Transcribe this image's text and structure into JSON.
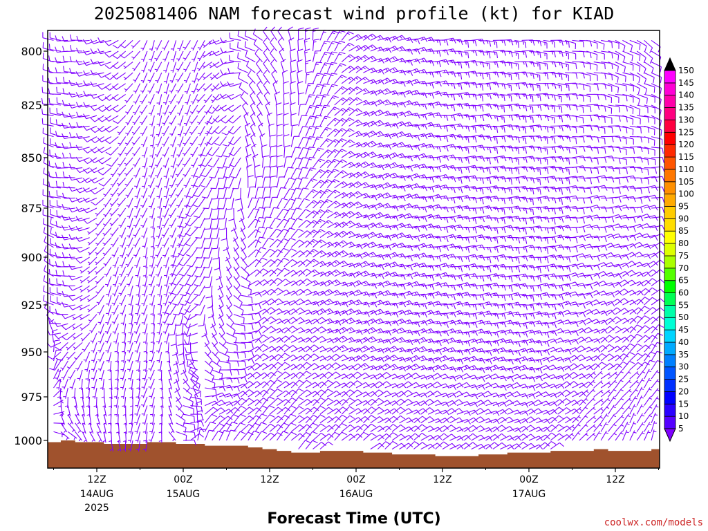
{
  "chart_data": {
    "type": "wind_barb_time_height",
    "title": "2025081406 NAM forecast wind profile (kt) for KIAD",
    "xlabel": "Forecast Time (UTC)",
    "credit": "coolwx.com/models",
    "y_axis": {
      "scale": "pressure",
      "direction": "decreasing-upward",
      "range_hPa": [
        1012,
        790
      ],
      "ticks": [
        "800",
        "825",
        "850",
        "875",
        "900",
        "925",
        "950",
        "975",
        "1000"
      ],
      "tick_values": [
        800,
        825,
        850,
        875,
        900,
        925,
        950,
        975,
        1000
      ]
    },
    "x_axis": {
      "range_hours": [
        6,
        90
      ],
      "step_hours": 1,
      "ticks": [
        {
          "hour": 12,
          "time": "12Z",
          "date": "14AUG",
          "year": "2025"
        },
        {
          "hour": 24,
          "time": "00Z",
          "date": "15AUG",
          "year": ""
        },
        {
          "hour": 36,
          "time": "12Z",
          "date": "",
          "year": ""
        },
        {
          "hour": 48,
          "time": "00Z",
          "date": "16AUG",
          "year": ""
        },
        {
          "hour": 60,
          "time": "12Z",
          "date": "",
          "year": ""
        },
        {
          "hour": 72,
          "time": "00Z",
          "date": "17AUG",
          "year": ""
        },
        {
          "hour": 84,
          "time": "12Z",
          "date": "",
          "year": ""
        }
      ]
    },
    "levels_hPa": [
      795,
      800,
      805,
      810,
      815,
      820,
      825,
      830,
      835,
      840,
      845,
      850,
      855,
      860,
      865,
      870,
      875,
      880,
      885,
      890,
      895,
      900,
      905,
      910,
      915,
      920,
      925,
      930,
      935,
      940,
      945,
      950,
      955,
      960,
      965,
      970,
      975,
      980,
      985,
      990,
      995,
      1000,
      1005
    ],
    "barb_color": "#7f00ff",
    "surface_color": "#a0522d",
    "surface_pressure": {
      "hours": [
        6,
        8,
        10,
        12,
        14,
        16,
        18,
        20,
        22,
        24,
        26,
        28,
        30,
        32,
        34,
        36,
        38,
        40,
        42,
        44,
        46,
        48,
        50,
        52,
        54,
        56,
        58,
        60,
        62,
        64,
        66,
        68,
        70,
        72,
        74,
        76,
        78,
        80,
        82,
        84,
        86,
        88,
        90
      ],
      "pressure": [
        1001,
        1000,
        1001,
        1001,
        1002,
        1002,
        1002,
        1001,
        1001,
        1002,
        1002,
        1003,
        1003,
        1003,
        1004,
        1005,
        1006,
        1007,
        1007,
        1006,
        1006,
        1006,
        1007,
        1007,
        1008,
        1008,
        1008,
        1009,
        1009,
        1009,
        1008,
        1008,
        1007,
        1007,
        1007,
        1006,
        1006,
        1006,
        1005,
        1006,
        1006,
        1006,
        1005
      ]
    },
    "wind_field_keyframes": [
      {
        "hour": 6,
        "low_dir": 110,
        "low_spd": 5,
        "mid_dir": 300,
        "mid_spd": 10,
        "up_dir": 280,
        "up_spd": 10
      },
      {
        "hour": 14,
        "low_dir": 170,
        "low_spd": 5,
        "mid_dir": 200,
        "mid_spd": 5,
        "up_dir": 250,
        "up_spd": 10
      },
      {
        "hour": 20,
        "low_dir": 200,
        "low_spd": 5,
        "mid_dir": 190,
        "mid_spd": 5,
        "up_dir": 200,
        "up_spd": 5
      },
      {
        "hour": 26,
        "low_dir": 20,
        "low_spd": 10,
        "mid_dir": 220,
        "mid_spd": 10,
        "up_dir": 205,
        "up_spd": 5
      },
      {
        "hour": 34,
        "low_dir": 40,
        "low_spd": 10,
        "mid_dir": 60,
        "mid_spd": 10,
        "up_dir": 300,
        "up_spd": 10
      },
      {
        "hour": 48,
        "low_dir": 50,
        "low_spd": 10,
        "mid_dir": 70,
        "mid_spd": 15,
        "up_dir": 60,
        "up_spd": 15
      },
      {
        "hour": 62,
        "low_dir": 60,
        "low_spd": 10,
        "mid_dir": 80,
        "mid_spd": 15,
        "up_dir": 90,
        "up_spd": 15
      },
      {
        "hour": 72,
        "low_dir": 60,
        "low_spd": 10,
        "mid_dir": 85,
        "mid_spd": 15,
        "up_dir": 95,
        "up_spd": 15
      },
      {
        "hour": 80,
        "low_dir": 40,
        "low_spd": 5,
        "mid_dir": 70,
        "mid_spd": 10,
        "up_dir": 100,
        "up_spd": 10
      },
      {
        "hour": 90,
        "low_dir": 20,
        "low_spd": 5,
        "mid_dir": 45,
        "mid_spd": 10,
        "up_dir": 130,
        "up_spd": 10
      }
    ],
    "colorbar": {
      "unit": "kt",
      "values": [
        5,
        10,
        15,
        20,
        25,
        30,
        35,
        40,
        45,
        50,
        55,
        60,
        65,
        70,
        75,
        80,
        85,
        90,
        95,
        100,
        105,
        110,
        115,
        120,
        125,
        130,
        135,
        140,
        145,
        150
      ],
      "labels": [
        "5",
        "10",
        "15",
        "20",
        "25",
        "30",
        "35",
        "40",
        "45",
        "50",
        "55",
        "60",
        "65",
        "70",
        "75",
        "80",
        "85",
        "90",
        "95",
        "100",
        "105",
        "110",
        "115",
        "120",
        "125",
        "130",
        "135",
        "140",
        "145",
        "150"
      ],
      "colors": [
        "#7f00ff",
        "#5500ff",
        "#2a00ff",
        "#0000ff",
        "#0030ff",
        "#0055ff",
        "#0080ff",
        "#00aaff",
        "#00d5ff",
        "#00ffd5",
        "#00ffaa",
        "#00ff55",
        "#00ff00",
        "#55ff00",
        "#aaff00",
        "#ddff00",
        "#ffff00",
        "#ffdd00",
        "#ffcc00",
        "#ffaa00",
        "#ff9000",
        "#ff7700",
        "#ff5500",
        "#ff2a00",
        "#ff0000",
        "#ff0040",
        "#ff0080",
        "#ff00aa",
        "#ff00d5",
        "#ff00ff"
      ],
      "top_color": "#000000"
    }
  }
}
